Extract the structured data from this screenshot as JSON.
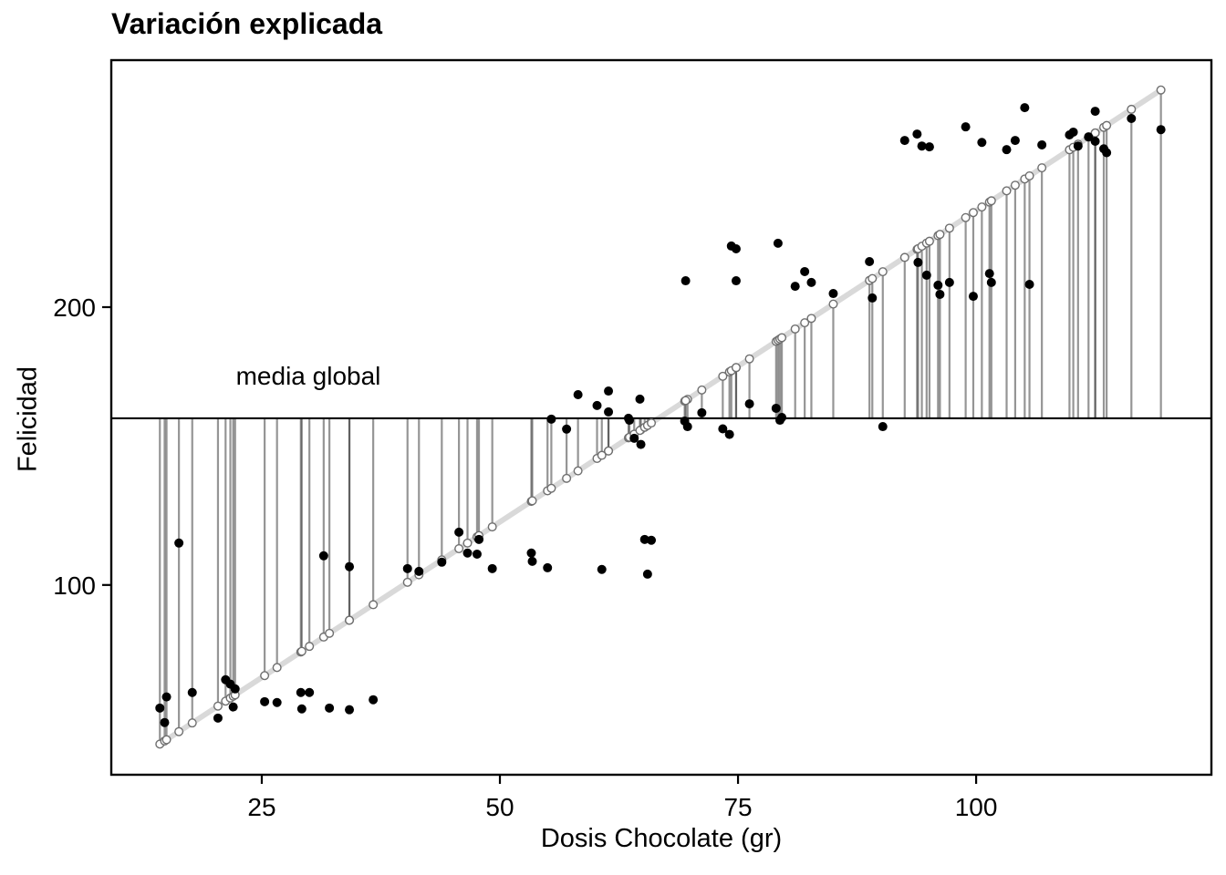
{
  "chart_data": {
    "type": "scatter",
    "title": "Variación explicada",
    "xlabel": "Dosis Chocolate (gr)",
    "ylabel": "Felicidad",
    "mean_label": "media global",
    "mean_y": 160,
    "fit_line": {
      "intercept": 10.7,
      "slope": 2.24
    },
    "x_ticks": [
      25,
      50,
      75,
      100
    ],
    "y_ticks": [
      100,
      200
    ],
    "xlim": [
      9.2,
      124.7
    ],
    "ylim": [
      31.7,
      288.9
    ],
    "grid": false,
    "legend": "none",
    "colors": {
      "point": "#000000",
      "fit_line": "#d9d9d9",
      "fit_marker_fill": "#ffffff",
      "fit_marker_stroke": "#6f6f6f",
      "segment": "#2e2e2e",
      "mean_line": "#000000",
      "axis": "#000000",
      "background": "#ffffff"
    },
    "points": [
      [
        14.3,
        55.7
      ],
      [
        14.8,
        50.5
      ],
      [
        15.0,
        59.7
      ],
      [
        16.3,
        115.1
      ],
      [
        17.7,
        61.3
      ],
      [
        20.4,
        52.1
      ],
      [
        21.2,
        65.9
      ],
      [
        21.7,
        64.3
      ],
      [
        22.0,
        56.1
      ],
      [
        22.2,
        62.6
      ],
      [
        25.3,
        58.0
      ],
      [
        26.6,
        57.7
      ],
      [
        29.1,
        61.3
      ],
      [
        29.2,
        55.4
      ],
      [
        30.0,
        61.3
      ],
      [
        31.5,
        110.5
      ],
      [
        32.1,
        55.7
      ],
      [
        34.2,
        55.1
      ],
      [
        34.2,
        106.6
      ],
      [
        36.7,
        58.7
      ],
      [
        40.3,
        105.9
      ],
      [
        41.5,
        104.9
      ],
      [
        43.9,
        108.2
      ],
      [
        45.7,
        119.0
      ],
      [
        46.6,
        111.5
      ],
      [
        47.6,
        111.1
      ],
      [
        47.8,
        116.4
      ],
      [
        49.2,
        105.9
      ],
      [
        53.3,
        111.5
      ],
      [
        53.4,
        108.5
      ],
      [
        55.0,
        106.2
      ],
      [
        55.4,
        159.7
      ],
      [
        57.0,
        156.1
      ],
      [
        58.2,
        168.5
      ],
      [
        60.2,
        164.6
      ],
      [
        60.7,
        105.6
      ],
      [
        61.4,
        169.8
      ],
      [
        61.4,
        162.3
      ],
      [
        63.5,
        160.0
      ],
      [
        63.6,
        159.3
      ],
      [
        64.1,
        152.8
      ],
      [
        64.8,
        150.6
      ],
      [
        64.7,
        166.9
      ],
      [
        65.2,
        116.4
      ],
      [
        65.5,
        103.9
      ],
      [
        65.9,
        116.1
      ],
      [
        69.4,
        159.0
      ],
      [
        69.7,
        157.0
      ],
      [
        69.5,
        209.5
      ],
      [
        71.2,
        162.0
      ],
      [
        73.4,
        156.2
      ],
      [
        74.1,
        154.2
      ],
      [
        74.3,
        222.0
      ],
      [
        74.8,
        221.0
      ],
      [
        74.8,
        209.5
      ],
      [
        76.2,
        165.2
      ],
      [
        79.0,
        163.6
      ],
      [
        79.2,
        223.0
      ],
      [
        79.4,
        159.3
      ],
      [
        79.6,
        160.3
      ],
      [
        81.0,
        207.5
      ],
      [
        82.0,
        212.8
      ],
      [
        82.7,
        208.9
      ],
      [
        85.0,
        204.9
      ],
      [
        88.8,
        216.4
      ],
      [
        89.1,
        203.3
      ],
      [
        90.2,
        157.0
      ],
      [
        92.5,
        260.0
      ],
      [
        93.8,
        262.3
      ],
      [
        93.9,
        216.1
      ],
      [
        94.3,
        258.0
      ],
      [
        94.8,
        211.5
      ],
      [
        95.1,
        257.7
      ],
      [
        96.0,
        207.9
      ],
      [
        96.2,
        204.6
      ],
      [
        97.2,
        208.9
      ],
      [
        98.9,
        264.9
      ],
      [
        99.7,
        203.9
      ],
      [
        100.6,
        259.3
      ],
      [
        101.4,
        212.1
      ],
      [
        101.6,
        208.9
      ],
      [
        103.2,
        256.7
      ],
      [
        104.1,
        260.0
      ],
      [
        105.1,
        271.8
      ],
      [
        105.6,
        208.2
      ],
      [
        106.9,
        258.4
      ],
      [
        109.8,
        262.0
      ],
      [
        110.2,
        263.0
      ],
      [
        110.7,
        258.0
      ],
      [
        111.8,
        261.3
      ],
      [
        112.5,
        259.7
      ],
      [
        112.5,
        270.5
      ],
      [
        113.4,
        257.0
      ],
      [
        113.7,
        255.6
      ],
      [
        116.3,
        267.9
      ],
      [
        119.4,
        263.9
      ]
    ]
  }
}
